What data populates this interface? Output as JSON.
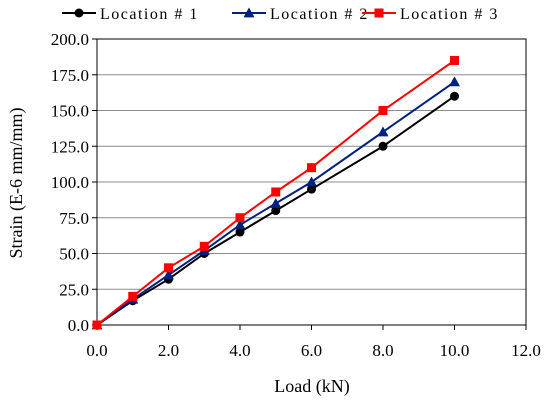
{
  "chart_data": {
    "type": "line",
    "title": "",
    "xlabel": "Load  (kN)",
    "ylabel": "Strain  (E-6 mm/mm)",
    "xlim": [
      0,
      12
    ],
    "ylim": [
      0,
      200
    ],
    "x_ticks": [
      "0.0",
      "2.0",
      "4.0",
      "6.0",
      "8.0",
      "10.0",
      "12.0"
    ],
    "y_ticks": [
      "0.0",
      "25.0",
      "50.0",
      "75.0",
      "100.0",
      "125.0",
      "150.0",
      "175.0",
      "200.0"
    ],
    "grid": "horizontal",
    "legend_position": "top",
    "x": [
      0,
      1,
      2,
      3,
      4,
      5,
      6,
      8,
      10
    ],
    "series": [
      {
        "name": "Location # 1",
        "color": "#000000",
        "marker": "circle",
        "values": [
          0,
          17,
          32,
          50,
          65,
          80,
          95,
          125,
          160
        ]
      },
      {
        "name": "Location # 2",
        "color": "#002080",
        "marker": "triangle",
        "values": [
          0,
          18,
          35,
          52,
          70,
          85,
          100,
          135,
          170
        ]
      },
      {
        "name": "Location # 3",
        "color": "#ff0000",
        "marker": "square",
        "values": [
          0,
          20,
          40,
          55,
          75,
          93,
          110,
          150,
          185
        ]
      }
    ]
  }
}
